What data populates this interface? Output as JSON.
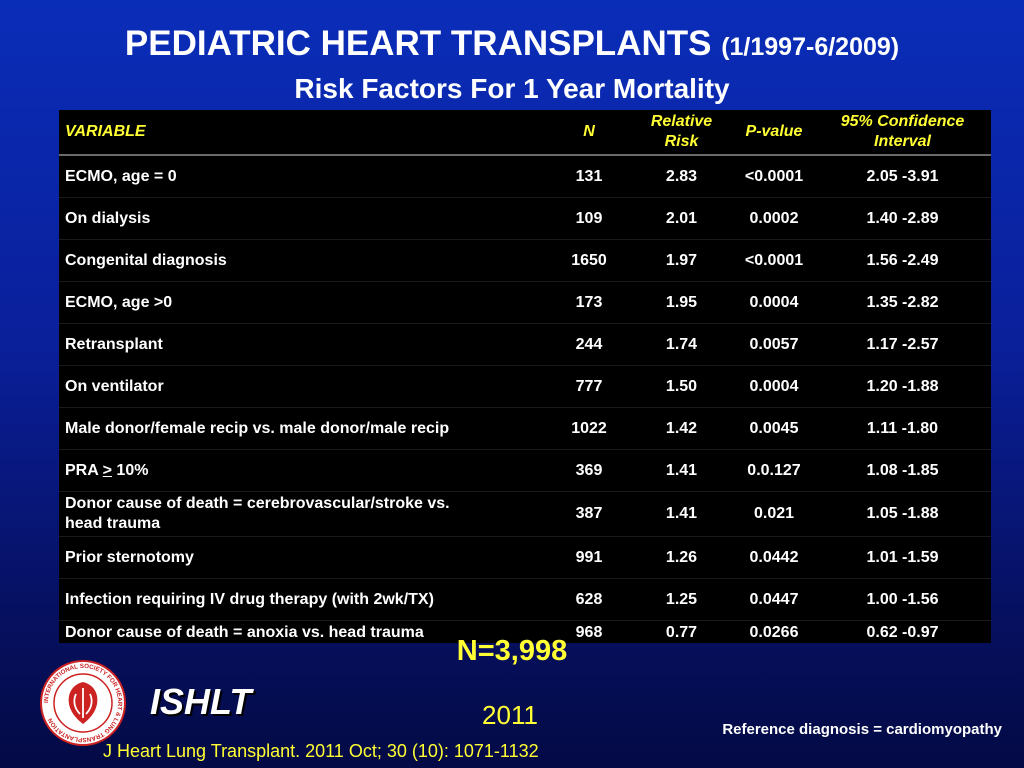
{
  "slide": {
    "title": "PEDIATRIC HEART TRANSPLANTS",
    "title_range": "(1/1997-6/2009)",
    "subtitle": "Risk Factors For 1 Year Mortality",
    "sample_size": "N=3,998",
    "brand": "ISHLT",
    "year": "2011",
    "reference_note": "Reference diagnosis = cardiomyopathy",
    "citation": "J Heart Lung Transplant. 2011 Oct; 30 (10): 1071-1132"
  },
  "logo": {
    "ring_text": "INTERNATIONAL SOCIETY FOR HEART & LUNG TRANSPLANTATION",
    "colors": {
      "ring": "#cc2222",
      "background": "#ffffff"
    }
  },
  "table": {
    "headers": {
      "variable": "VARIABLE",
      "n": "N",
      "relative_risk_line1": "Relative",
      "relative_risk_line2": "Risk",
      "p_value": "P-value",
      "ci_line1": "95% Confidence",
      "ci_line2": "Interval"
    },
    "rows": [
      {
        "variable": "ECMO, age = 0",
        "n": "131",
        "rr": "2.83",
        "p": "<0.0001",
        "ci": "2.05 -3.91"
      },
      {
        "variable": "On dialysis",
        "n": "109",
        "rr": "2.01",
        "p": "0.0002",
        "ci": "1.40 -2.89"
      },
      {
        "variable": "Congenital diagnosis",
        "n": "1650",
        "rr": "1.97",
        "p": "<0.0001",
        "ci": "1.56 -2.49"
      },
      {
        "variable": "ECMO, age >0",
        "n": "173",
        "rr": "1.95",
        "p": "0.0004",
        "ci": "1.35 -2.82"
      },
      {
        "variable": "Retransplant",
        "n": "244",
        "rr": "1.74",
        "p": "0.0057",
        "ci": "1.17 -2.57"
      },
      {
        "variable": "On ventilator",
        "n": "777",
        "rr": "1.50",
        "p": "0.0004",
        "ci": "1.20 -1.88"
      },
      {
        "variable": "Male donor/female recip vs. male donor/male recip",
        "n": "1022",
        "rr": "1.42",
        "p": "0.0045",
        "ci": "1.11 -1.80"
      },
      {
        "variable_prefix": "PRA ",
        "variable_symbol": ">",
        "variable_suffix": " 10%",
        "n": "369",
        "rr": "1.41",
        "p": "0.0.127",
        "ci": "1.08 -1.85"
      },
      {
        "variable_line1": "Donor cause of death = cerebrovascular/stroke vs.",
        "variable_line2": "head trauma",
        "n": "387",
        "rr": "1.41",
        "p": "0.021",
        "ci": "1.05 -1.88"
      },
      {
        "variable": "Prior sternotomy",
        "n": "991",
        "rr": "1.26",
        "p": "0.0442",
        "ci": "1.01 -1.59"
      },
      {
        "variable": "Infection requiring IV drug therapy (with 2wk/TX)",
        "n": "628",
        "rr": "1.25",
        "p": "0.0447",
        "ci": "1.00 -1.56"
      },
      {
        "variable": "Donor cause of death = anoxia vs. head trauma",
        "n": "968",
        "rr": "0.77",
        "p": "0.0266",
        "ci": "0.62 -0.97"
      }
    ]
  },
  "colors": {
    "header_text": "#ffff33",
    "table_background": "#000000",
    "slide_background_top": "#0a2db8",
    "slide_background_bottom": "#040a45"
  }
}
